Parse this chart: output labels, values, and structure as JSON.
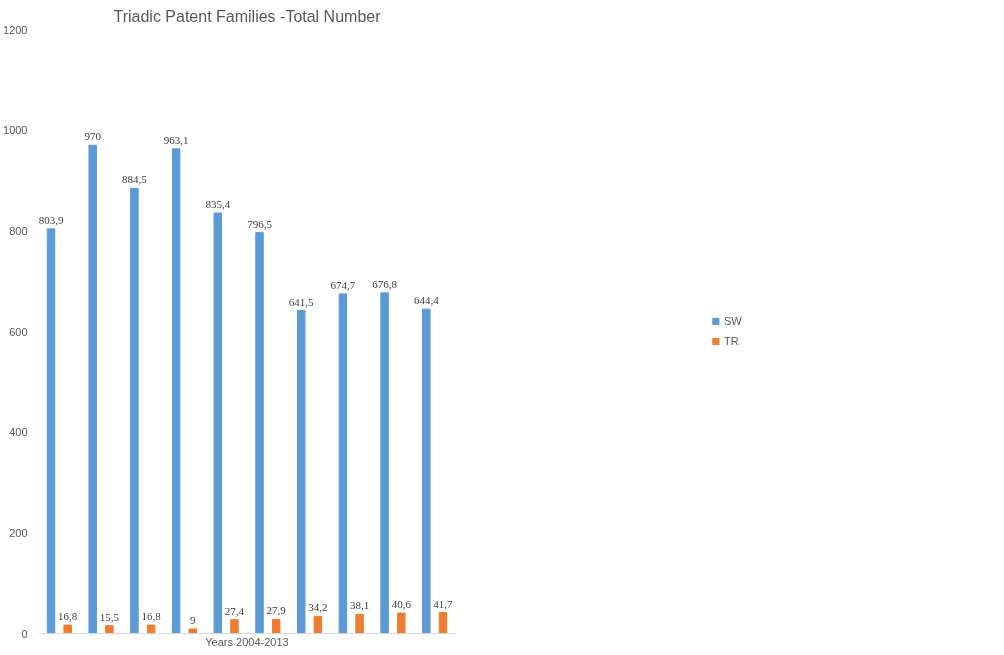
{
  "chart_data": {
    "type": "bar",
    "title": "Triadic Patent Families -Total Number",
    "xlabel": "Years 2004-2013",
    "categories": [
      null,
      null,
      null,
      null,
      null,
      null,
      null,
      null,
      null,
      null
    ],
    "series": [
      {
        "name": "SW",
        "color": "#5b9bd5",
        "values": [
          803.9,
          970,
          884.5,
          963.1,
          835.4,
          796.5,
          641.5,
          674.7,
          676.8,
          644.4
        ],
        "value_labels": [
          "803,9",
          "970",
          "884,5",
          "963,1",
          "835,4",
          "796,5",
          "641,5",
          "674,7",
          "676,8",
          "644,4"
        ]
      },
      {
        "name": "TR",
        "color": "#ed7d31",
        "values": [
          16.8,
          15.5,
          16.8,
          9,
          27.4,
          27.9,
          34.2,
          38.1,
          40.6,
          41.7
        ],
        "value_labels": [
          "16,8",
          "15,5",
          "16,8",
          "9",
          "27,4",
          "27,9",
          "34,2",
          "38,1",
          "40,6",
          "41,7"
        ]
      }
    ],
    "ylim": [
      0,
      1200
    ],
    "yticks": [
      0,
      200,
      400,
      600,
      800,
      1000,
      1200
    ],
    "grid": false,
    "legend": "right"
  }
}
